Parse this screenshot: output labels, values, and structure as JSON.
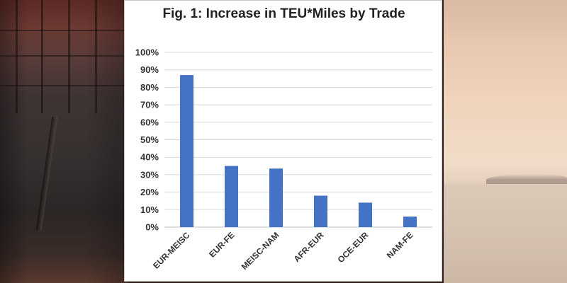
{
  "chart_data": {
    "type": "bar",
    "title": "Fig. 1: Increase in TEU*Miles by Trade",
    "xlabel": "",
    "ylabel": "",
    "categories": [
      "EUR-MEISC",
      "EUR-FE",
      "MEISC-NAM",
      "AFR-EUR",
      "OCE-EUR",
      "NAM-FE"
    ],
    "values": [
      87,
      35,
      33.5,
      18,
      14,
      6
    ],
    "ylim": [
      0,
      100
    ],
    "yticks": [
      "0%",
      "10%",
      "20%",
      "30%",
      "40%",
      "50%",
      "60%",
      "70%",
      "80%",
      "90%",
      "100%"
    ],
    "grid": true,
    "bar_color": "#4472C4",
    "grid_color": "#d9d9d9"
  }
}
